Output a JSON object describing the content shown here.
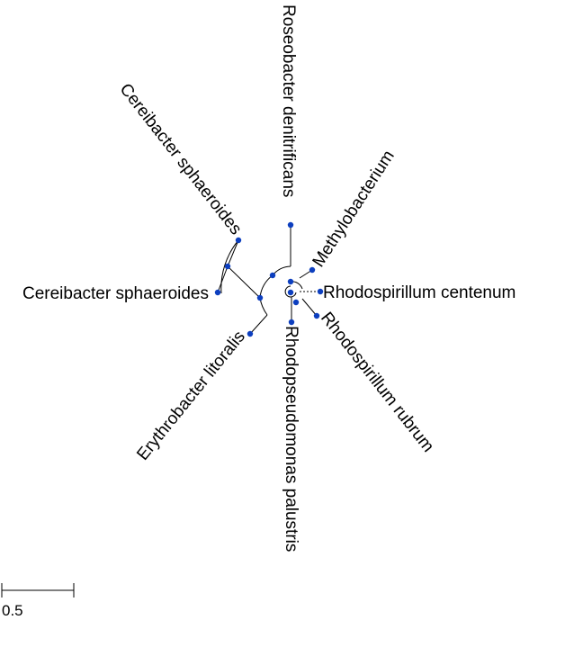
{
  "tree": {
    "leaves": [
      {
        "label": "Roseobacter denitrificans"
      },
      {
        "label": "Methylobacterium"
      },
      {
        "label": "Rhodospirillum centenum"
      },
      {
        "label": "Rhodospirillum rubrum"
      },
      {
        "label": "Rhodopseudomonas palustris"
      },
      {
        "label": "Erythrobacter litoralis"
      },
      {
        "label": "Cereibacter sphaeroides"
      },
      {
        "label": "Cereibacter sphaeroides"
      }
    ],
    "scale_bar": {
      "label": "0.5"
    },
    "colors": {
      "node": "#0d3fbf",
      "branch": "#000000",
      "background": "#ffffff"
    }
  }
}
